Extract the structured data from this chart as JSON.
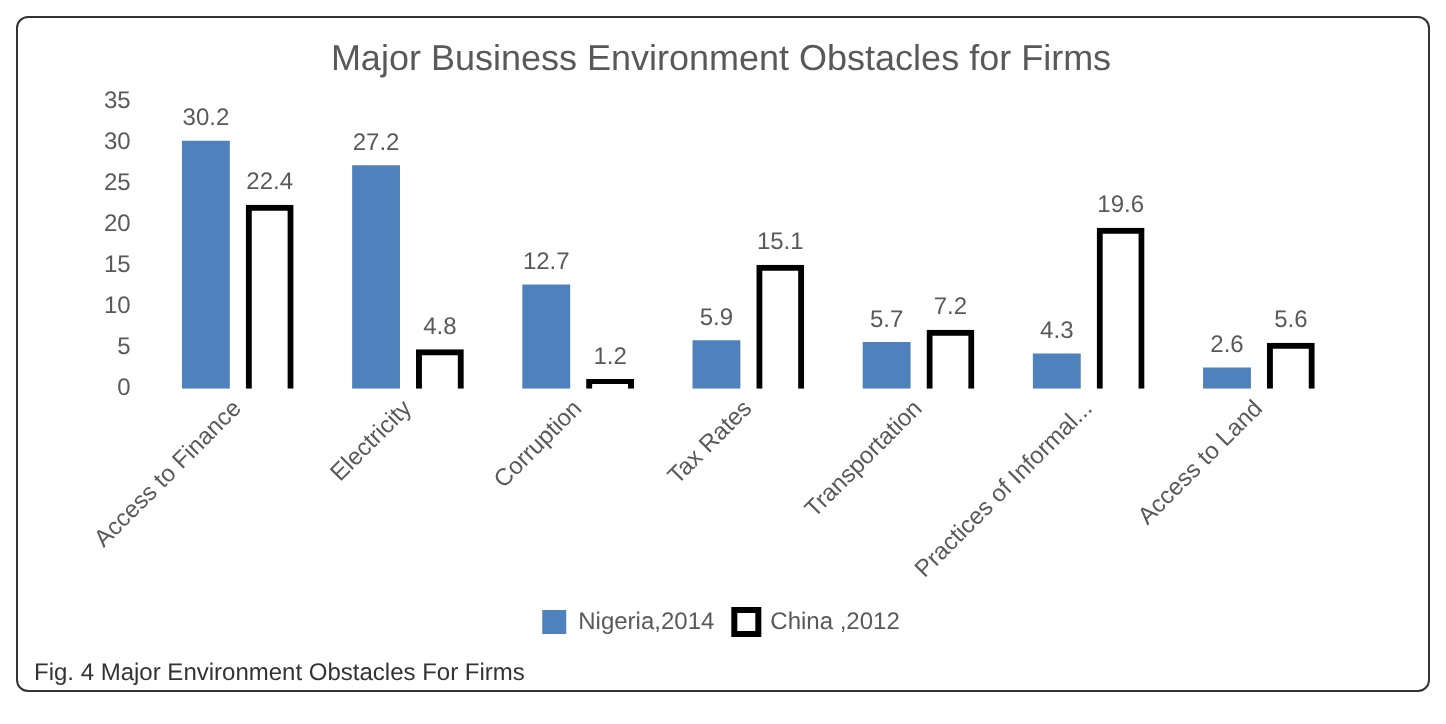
{
  "chart_data": {
    "type": "bar",
    "title": "Major Business Environment Obstacles for Firms",
    "categories": [
      "Access to Finance",
      "Electricity",
      "Corruption",
      "Tax Rates",
      "Transportation",
      "Practices of Informal...",
      "Access to Land"
    ],
    "series": [
      {
        "name": "Nigeria,2014",
        "color": "#4f81bd",
        "values": [
          30.2,
          27.2,
          12.7,
          5.9,
          5.7,
          4.3,
          2.6
        ]
      },
      {
        "name": "China ,2012",
        "color": "#000000",
        "values": [
          22.4,
          4.8,
          1.2,
          15.1,
          7.2,
          19.6,
          5.6
        ]
      }
    ],
    "ylim": [
      0,
      35
    ],
    "yticks": [
      0,
      5,
      10,
      15,
      20,
      25,
      30,
      35
    ],
    "grid": false,
    "legend": "bottom",
    "data_labels": true,
    "annotations": [
      "Fig. 4 Major Environment Obstacles For Firms"
    ]
  }
}
